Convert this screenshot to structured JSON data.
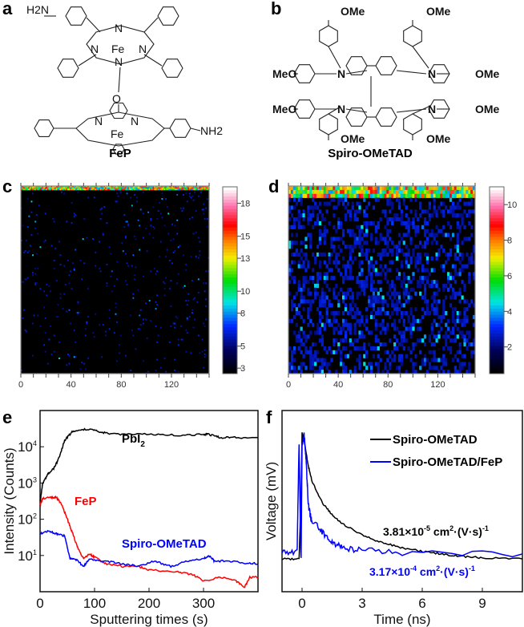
{
  "panels": {
    "a": "a",
    "b": "b",
    "c": "c",
    "d": "d",
    "e": "e",
    "f": "f"
  },
  "structures": {
    "fep": {
      "name": "FeP",
      "h2n": "H2N",
      "nh2": "NH2",
      "n": "N",
      "fe": "Fe",
      "o": "O"
    },
    "spiro": {
      "name": "Spiro-OMeTAD",
      "ome": "OMe",
      "meo": "MeO",
      "n": "N"
    }
  },
  "chart_data": [
    {
      "panel": "c",
      "type": "heatmap",
      "xlim": [
        0,
        150
      ],
      "xticks": [
        0,
        40,
        80,
        120
      ],
      "colorbar": {
        "ticks": [
          3,
          5,
          8,
          10,
          13,
          15,
          18
        ],
        "range": [
          2.5,
          19.5
        ]
      },
      "description_values": {
        "surface_band_high": true,
        "bulk_density": 0.02
      }
    },
    {
      "panel": "d",
      "type": "heatmap",
      "xlim": [
        0,
        150
      ],
      "xticks": [
        0,
        40,
        80,
        120
      ],
      "colorbar": {
        "ticks": [
          2,
          4,
          6,
          8,
          10
        ],
        "range": [
          0.5,
          11
        ]
      },
      "description_values": {
        "surface_band_high": true,
        "bulk_density": 0.35
      }
    },
    {
      "panel": "e",
      "type": "line",
      "xlabel": "Sputtering times (s)",
      "ylabel": "Intensity (Counts)",
      "xlim": [
        0,
        400
      ],
      "ylim": [
        1,
        100000
      ],
      "yscale": "log",
      "xticks": [
        0,
        100,
        200,
        300
      ],
      "yticks": [
        {
          "v": 10000,
          "b": "10",
          "e": "4"
        },
        {
          "v": 1000,
          "b": "10",
          "e": "3"
        },
        {
          "v": 100,
          "b": "10",
          "e": "2"
        },
        {
          "v": 10,
          "b": "10",
          "e": "1"
        }
      ],
      "series": [
        {
          "name": "PbI",
          "sub": "2",
          "color": "#000000",
          "x": [
            0,
            5,
            15,
            25,
            35,
            45,
            60,
            80,
            100,
            120,
            150,
            200,
            250,
            300,
            310,
            330,
            360,
            400
          ],
          "y": [
            300,
            1000,
            1800,
            2500,
            5000,
            15000,
            27000,
            30000,
            29000,
            24000,
            22000,
            22000,
            21000,
            22000,
            22000,
            18000,
            18000,
            18000
          ]
        },
        {
          "name": "FeP",
          "color": "#ff0000",
          "x": [
            0,
            5,
            20,
            30,
            40,
            50,
            60,
            70,
            80,
            90,
            100,
            120,
            150,
            180,
            200,
            250,
            280,
            300,
            330,
            360,
            375,
            385,
            400
          ],
          "y": [
            250,
            380,
            400,
            400,
            250,
            100,
            40,
            15,
            8,
            11,
            9,
            6,
            5,
            5,
            4,
            3.5,
            3,
            2,
            2.5,
            2,
            1.3,
            2.5,
            2.5
          ]
        },
        {
          "name": "Spiro-OMeTAD",
          "color": "#0000ff",
          "x": [
            0,
            15,
            30,
            45,
            55,
            65,
            80,
            90,
            120,
            150,
            180,
            210,
            240,
            270,
            300,
            310,
            320,
            350,
            380,
            400
          ],
          "y": [
            40,
            48,
            40,
            35,
            8,
            8,
            5,
            8,
            7,
            6,
            5,
            7,
            5,
            7,
            8,
            10,
            7,
            7,
            6,
            6
          ]
        }
      ]
    },
    {
      "panel": "f",
      "type": "line",
      "xlabel": "Time (ns)",
      "ylabel": "Voltage (mV)",
      "xlim": [
        -1,
        11
      ],
      "ylim": [
        -0.26,
        1.18
      ],
      "xticks": [
        0,
        3,
        6,
        9
      ],
      "legend": "top-right",
      "series": [
        {
          "name": "Spiro-OMeTAD",
          "color": "#000000",
          "x": [
            -1,
            -0.15,
            -0.05,
            0,
            0.1,
            0.3,
            0.5,
            1,
            1.5,
            2,
            3,
            4,
            5,
            6,
            7,
            8,
            9,
            11
          ],
          "y": [
            0,
            0,
            0.5,
            1,
            0.95,
            0.75,
            0.62,
            0.45,
            0.35,
            0.28,
            0.19,
            0.13,
            0.09,
            0.06,
            0.04,
            0.02,
            0.01,
            0
          ],
          "annotation": {
            "base": "3.81×10",
            "exp": "-5",
            "unit": " cm",
            "unit_exp": "2",
            "tail": "·(V·s)",
            "tail_exp": "-1"
          }
        },
        {
          "name": "Spiro-OMeTAD/FeP",
          "color": "#0000ff",
          "x": [
            -1,
            -0.25,
            -0.15,
            -0.05,
            0,
            0.1,
            0.2,
            0.3,
            0.4,
            0.5,
            1,
            1.5,
            2,
            3,
            5,
            11
          ],
          "y": [
            0.05,
            0.05,
            0.9,
            0,
            0.9,
            1,
            0.8,
            0.45,
            0.35,
            0.3,
            0.22,
            0.13,
            0.09,
            0.07,
            0.05,
            0.04
          ],
          "annotation": {
            "base": "3.17×10",
            "exp": "-4",
            "unit": " cm",
            "unit_exp": "2",
            "tail": "·(V·s)",
            "tail_exp": "-1"
          }
        }
      ]
    }
  ]
}
